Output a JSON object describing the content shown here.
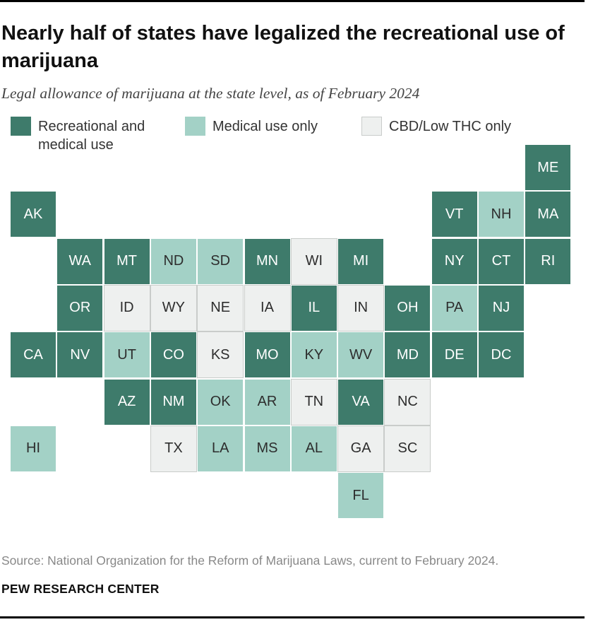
{
  "title": "Nearly half of states have legalized the recreational use of marijuana",
  "subtitle": "Legal allowance of marijuana at the state level, as of February 2024",
  "legend": {
    "recreational": "Recreational and medical use",
    "medical": "Medical use only",
    "cbd": "CBD/Low THC only"
  },
  "colors": {
    "recreational": "#3e7b6b",
    "medical": "#a3d1c6",
    "cbd": "#eef0ef"
  },
  "states": [
    {
      "abbr": "ME",
      "category": "recreational",
      "row": 0,
      "col": 11
    },
    {
      "abbr": "AK",
      "category": "recreational",
      "row": 1,
      "col": 0
    },
    {
      "abbr": "VT",
      "category": "recreational",
      "row": 1,
      "col": 9
    },
    {
      "abbr": "NH",
      "category": "medical",
      "row": 1,
      "col": 10
    },
    {
      "abbr": "MA",
      "category": "recreational",
      "row": 1,
      "col": 11
    },
    {
      "abbr": "WA",
      "category": "recreational",
      "row": 2,
      "col": 1
    },
    {
      "abbr": "MT",
      "category": "recreational",
      "row": 2,
      "col": 2
    },
    {
      "abbr": "ND",
      "category": "medical",
      "row": 2,
      "col": 3
    },
    {
      "abbr": "SD",
      "category": "medical",
      "row": 2,
      "col": 4
    },
    {
      "abbr": "MN",
      "category": "recreational",
      "row": 2,
      "col": 5
    },
    {
      "abbr": "WI",
      "category": "cbd",
      "row": 2,
      "col": 6
    },
    {
      "abbr": "MI",
      "category": "recreational",
      "row": 2,
      "col": 7
    },
    {
      "abbr": "NY",
      "category": "recreational",
      "row": 2,
      "col": 9
    },
    {
      "abbr": "CT",
      "category": "recreational",
      "row": 2,
      "col": 10
    },
    {
      "abbr": "RI",
      "category": "recreational",
      "row": 2,
      "col": 11
    },
    {
      "abbr": "OR",
      "category": "recreational",
      "row": 3,
      "col": 1
    },
    {
      "abbr": "ID",
      "category": "cbd",
      "row": 3,
      "col": 2
    },
    {
      "abbr": "WY",
      "category": "cbd",
      "row": 3,
      "col": 3
    },
    {
      "abbr": "NE",
      "category": "cbd",
      "row": 3,
      "col": 4
    },
    {
      "abbr": "IA",
      "category": "cbd",
      "row": 3,
      "col": 5
    },
    {
      "abbr": "IL",
      "category": "recreational",
      "row": 3,
      "col": 6
    },
    {
      "abbr": "IN",
      "category": "cbd",
      "row": 3,
      "col": 7
    },
    {
      "abbr": "OH",
      "category": "recreational",
      "row": 3,
      "col": 8
    },
    {
      "abbr": "PA",
      "category": "medical",
      "row": 3,
      "col": 9
    },
    {
      "abbr": "NJ",
      "category": "recreational",
      "row": 3,
      "col": 10
    },
    {
      "abbr": "CA",
      "category": "recreational",
      "row": 4,
      "col": 0
    },
    {
      "abbr": "NV",
      "category": "recreational",
      "row": 4,
      "col": 1
    },
    {
      "abbr": "UT",
      "category": "medical",
      "row": 4,
      "col": 2
    },
    {
      "abbr": "CO",
      "category": "recreational",
      "row": 4,
      "col": 3
    },
    {
      "abbr": "KS",
      "category": "cbd",
      "row": 4,
      "col": 4
    },
    {
      "abbr": "MO",
      "category": "recreational",
      "row": 4,
      "col": 5
    },
    {
      "abbr": "KY",
      "category": "medical",
      "row": 4,
      "col": 6
    },
    {
      "abbr": "WV",
      "category": "medical",
      "row": 4,
      "col": 7
    },
    {
      "abbr": "MD",
      "category": "recreational",
      "row": 4,
      "col": 8
    },
    {
      "abbr": "DE",
      "category": "recreational",
      "row": 4,
      "col": 9
    },
    {
      "abbr": "DC",
      "category": "recreational",
      "row": 4,
      "col": 10
    },
    {
      "abbr": "AZ",
      "category": "recreational",
      "row": 5,
      "col": 2
    },
    {
      "abbr": "NM",
      "category": "recreational",
      "row": 5,
      "col": 3
    },
    {
      "abbr": "OK",
      "category": "medical",
      "row": 5,
      "col": 4
    },
    {
      "abbr": "AR",
      "category": "medical",
      "row": 5,
      "col": 5
    },
    {
      "abbr": "TN",
      "category": "cbd",
      "row": 5,
      "col": 6
    },
    {
      "abbr": "VA",
      "category": "recreational",
      "row": 5,
      "col": 7
    },
    {
      "abbr": "NC",
      "category": "cbd",
      "row": 5,
      "col": 8
    },
    {
      "abbr": "HI",
      "category": "medical",
      "row": 6,
      "col": 0
    },
    {
      "abbr": "TX",
      "category": "cbd",
      "row": 6,
      "col": 3
    },
    {
      "abbr": "LA",
      "category": "medical",
      "row": 6,
      "col": 4
    },
    {
      "abbr": "MS",
      "category": "medical",
      "row": 6,
      "col": 5
    },
    {
      "abbr": "AL",
      "category": "medical",
      "row": 6,
      "col": 6
    },
    {
      "abbr": "GA",
      "category": "cbd",
      "row": 6,
      "col": 7
    },
    {
      "abbr": "SC",
      "category": "cbd",
      "row": 6,
      "col": 8
    },
    {
      "abbr": "FL",
      "category": "medical",
      "row": 7,
      "col": 7
    }
  ],
  "source": "Source: National Organization for the Reform of Marijuana Laws, current to February 2024.",
  "credit": "PEW RESEARCH CENTER"
}
